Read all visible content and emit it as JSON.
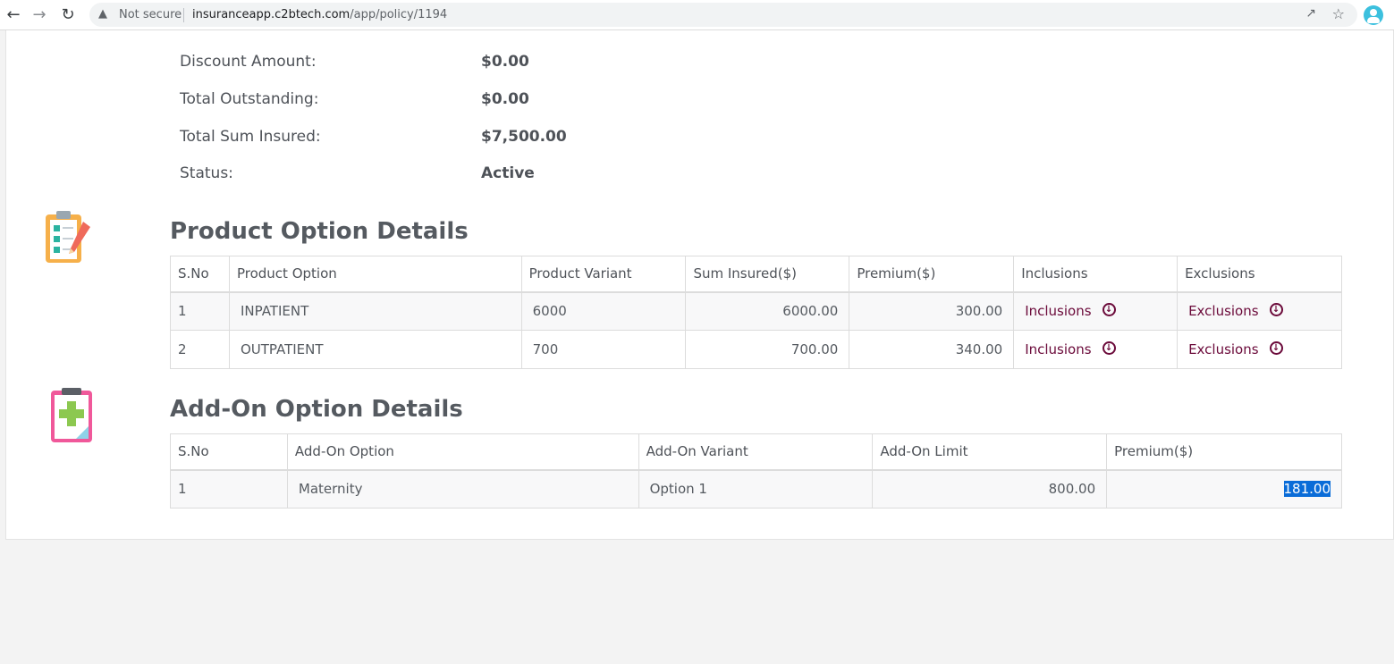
{
  "browser": {
    "security_label": "Not secure",
    "url_host": "insuranceapp.c2btech.com",
    "url_path": "/app/policy/1194"
  },
  "summary": [
    {
      "label": "Discount Amount:",
      "value": "$0.00"
    },
    {
      "label": "Total Outstanding:",
      "value": "$0.00"
    },
    {
      "label": "Total Sum Insured:",
      "value": "$7,500.00"
    },
    {
      "label": "Status:",
      "value": "Active"
    }
  ],
  "product_options": {
    "title": "Product Option Details",
    "headers": [
      "S.No",
      "Product Option",
      "Product Variant",
      "Sum Insured($)",
      "Premium($)",
      "Inclusions",
      "Exclusions"
    ],
    "rows": [
      {
        "sno": "1",
        "option": "INPATIENT",
        "variant": "6000",
        "sum_insured": "6000.00",
        "premium": "300.00",
        "inclusions": "Inclusions",
        "exclusions": "Exclusions"
      },
      {
        "sno": "2",
        "option": "OUTPATIENT",
        "variant": "700",
        "sum_insured": "700.00",
        "premium": "340.00",
        "inclusions": "Inclusions",
        "exclusions": "Exclusions"
      }
    ]
  },
  "addon_options": {
    "title": "Add-On Option Details",
    "headers": [
      "S.No",
      "Add-On Option",
      "Add-On Variant",
      "Add-On Limit",
      "Premium($)"
    ],
    "rows": [
      {
        "sno": "1",
        "option": "Maternity",
        "variant": "Option 1",
        "limit": "800.00",
        "premium": "181.00"
      }
    ]
  },
  "icons": {
    "checklist": "checklist-clipboard-icon",
    "medical": "medical-clipboard-icon",
    "download": "download-circle-icon"
  }
}
